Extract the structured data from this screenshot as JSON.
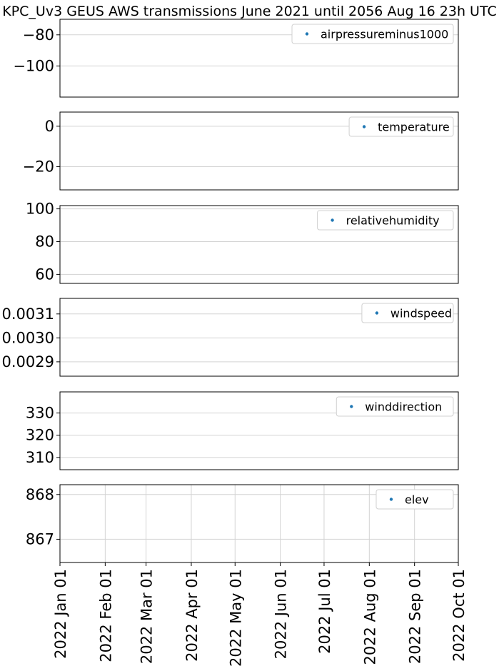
{
  "title": "KPC_Uv3 GEUS AWS transmissions June 2021 until 2056 Aug 16 23h UTC",
  "chart_data": {
    "type": "scatter",
    "title": "KPC_Uv3 GEUS AWS transmissions June 2021 until 2056 Aug 16 23h UTC",
    "xaxis": {
      "type": "date",
      "range": [
        "2022-01-01",
        "2022-10-01"
      ],
      "ticks": [
        {
          "value": "2022-01-01",
          "label": "2022 Jan 01"
        },
        {
          "value": "2022-02-01",
          "label": "2022 Feb 01"
        },
        {
          "value": "2022-03-01",
          "label": "2022 Mar 01"
        },
        {
          "value": "2022-04-01",
          "label": "2022 Apr 01"
        },
        {
          "value": "2022-05-01",
          "label": "2022 May 01"
        },
        {
          "value": "2022-06-01",
          "label": "2022 Jun 01"
        },
        {
          "value": "2022-07-01",
          "label": "2022 Jul 01"
        },
        {
          "value": "2022-08-01",
          "label": "2022 Aug 01"
        },
        {
          "value": "2022-09-01",
          "label": "2022 Sep 01"
        },
        {
          "value": "2022-10-01",
          "label": "2022 Oct 01"
        }
      ]
    },
    "series_color": "#1f77b4",
    "grid": true,
    "legend_position": "top-right",
    "panels": [
      {
        "name": "airpressureminus1000",
        "ylim": [
          -120,
          -70
        ],
        "yticks": [
          {
            "value": -80,
            "label": "−80"
          },
          {
            "value": -100,
            "label": "−100"
          }
        ],
        "points": []
      },
      {
        "name": "temperature",
        "ylim": [
          -31.5,
          7
        ],
        "yticks": [
          {
            "value": 0,
            "label": "0"
          },
          {
            "value": -20,
            "label": "−20"
          }
        ],
        "points": []
      },
      {
        "name": "relativehumidity",
        "ylim": [
          54.5,
          102
        ],
        "yticks": [
          {
            "value": 100,
            "label": "100"
          },
          {
            "value": 80,
            "label": "80"
          },
          {
            "value": 60,
            "label": "60"
          }
        ],
        "points": []
      },
      {
        "name": "windspeed",
        "ylim": [
          0.00284,
          0.003165
        ],
        "yticks": [
          {
            "value": 0.0031,
            "label": "0.0031"
          },
          {
            "value": 0.003,
            "label": "0.0030"
          },
          {
            "value": 0.0029,
            "label": "0.0029"
          }
        ],
        "points": []
      },
      {
        "name": "winddirection",
        "ylim": [
          304.5,
          339.5
        ],
        "yticks": [
          {
            "value": 330,
            "label": "330"
          },
          {
            "value": 320,
            "label": "320"
          },
          {
            "value": 310,
            "label": "310"
          }
        ],
        "points": []
      },
      {
        "name": "elev",
        "ylim": [
          866.48,
          868.22
        ],
        "yticks": [
          {
            "value": 868,
            "label": "868"
          },
          {
            "value": 867,
            "label": "867"
          }
        ],
        "points": []
      }
    ]
  }
}
